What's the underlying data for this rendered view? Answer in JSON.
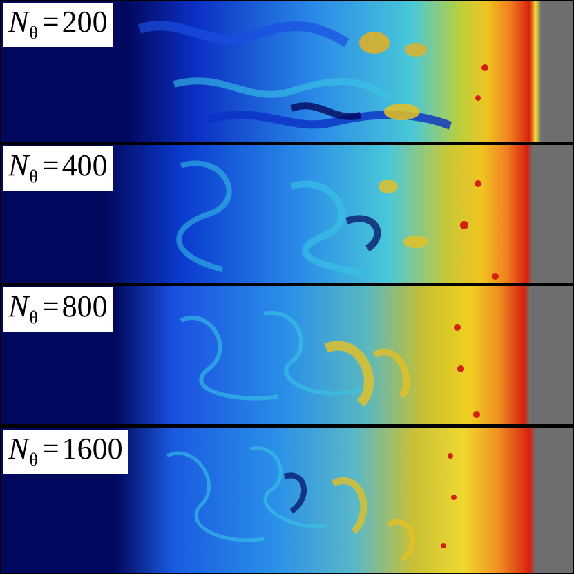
{
  "panels": [
    {
      "var": "N",
      "sub": "θ",
      "eq": "=",
      "value": "200"
    },
    {
      "var": "N",
      "sub": "θ",
      "eq": "=",
      "value": "400"
    },
    {
      "var": "N",
      "sub": "θ",
      "eq": "=",
      "value": "800"
    },
    {
      "var": "N",
      "sub": "θ",
      "eq": "=",
      "value": "1600"
    }
  ],
  "colors": {
    "background": "#02085e",
    "blue": "#1a4fe0",
    "cyan": "#37c6e6",
    "yellow": "#e8d420",
    "orange": "#f0921e",
    "red": "#d4200e",
    "grey_region": "#6e6e6e",
    "separator": "#000000"
  }
}
